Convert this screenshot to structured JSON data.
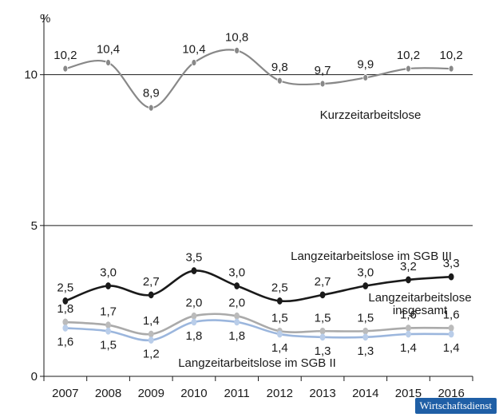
{
  "chart_data": {
    "type": "line",
    "title": "",
    "xlabel": "",
    "ylabel": "%",
    "ylim": [
      0,
      12
    ],
    "yticks": [
      0,
      5,
      10
    ],
    "grid_lines": [
      5,
      10
    ],
    "categories": [
      "2007",
      "2008",
      "2009",
      "2010",
      "2011",
      "2012",
      "2013",
      "2014",
      "2015",
      "2016"
    ],
    "series": [
      {
        "name": "Kurzzeitarbeitslose",
        "color": "#888888",
        "values": [
          10.2,
          10.4,
          8.9,
          10.4,
          10.8,
          9.8,
          9.7,
          9.9,
          10.2,
          10.2
        ],
        "labels": [
          "10,2",
          "10,4",
          "8,9",
          "10,4",
          "10,8",
          "9,8",
          "9,7",
          "9,9",
          "10,2",
          "10,2"
        ]
      },
      {
        "name": "Langzeitarbeitslose im SGB III",
        "color": "#1a1a1a",
        "values": [
          2.5,
          3.0,
          2.7,
          3.5,
          3.0,
          2.5,
          2.7,
          3.0,
          3.2,
          3.3
        ],
        "labels": [
          "2,5",
          "3,0",
          "2,7",
          "3,5",
          "3,0",
          "2,5",
          "2,7",
          "3,0",
          "3,2",
          "3,3"
        ]
      },
      {
        "name": "Langzeitarbeitslose insgesamt",
        "color": "#aaaaaa",
        "values": [
          1.8,
          1.7,
          1.4,
          2.0,
          2.0,
          1.5,
          1.5,
          1.5,
          1.6,
          1.6
        ],
        "labels": [
          "1,8",
          "1,7",
          "1,4",
          "2,0",
          "2,0",
          "1,5",
          "1,5",
          "1,5",
          "1,6",
          "1,6"
        ]
      },
      {
        "name": "Langzeitarbeitslose im SGB II",
        "color": "#9bb6dd",
        "values": [
          1.6,
          1.5,
          1.2,
          1.8,
          1.8,
          1.4,
          1.3,
          1.3,
          1.4,
          1.4
        ],
        "labels": [
          "1,6",
          "1,5",
          "1,2",
          "1,8",
          "1,8",
          "1,4",
          "1,3",
          "1,3",
          "1,4",
          "1,4"
        ]
      }
    ],
    "series_label_lines": [
      [
        "Kurzzeitarbeitslose"
      ],
      [
        "Langzeitarbeitslose im SGB III"
      ],
      [
        "Langzeitarbeitslose",
        "insgesamt"
      ],
      [
        "Langzeitarbeitslose im SGB II"
      ]
    ]
  },
  "brand": {
    "text": "Wirtschaftsdienst"
  }
}
